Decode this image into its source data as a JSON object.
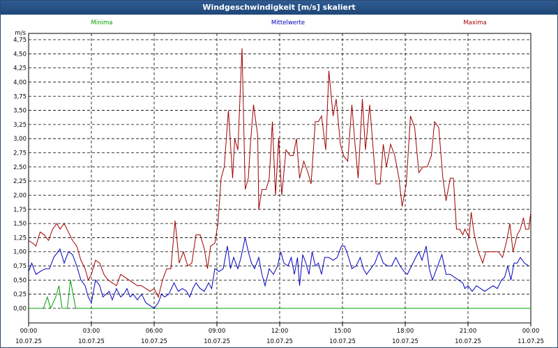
{
  "window": {
    "title": "Windgeschwindigkeit [m/s] skaliert"
  },
  "chart_data": {
    "type": "line",
    "title": "Windgeschwindigkeit [m/s] skaliert",
    "ylabel": "m/s",
    "xlabel": "",
    "ylim": [
      0,
      4.75
    ],
    "xlim": [
      0,
      24
    ],
    "grid": true,
    "legend_placement": "top",
    "y_ticks": [
      "4,75",
      "4,50",
      "4,25",
      "4,00",
      "3,75",
      "3,50",
      "3,25",
      "3,00",
      "2,75",
      "2,50",
      "2,25",
      "2,00",
      "1,75",
      "1,50",
      "1,25",
      "1,00",
      "0,75",
      "0,50",
      "0,25",
      "0,00"
    ],
    "x_ticks": [
      {
        "time": "00:00",
        "date": "10.07.25"
      },
      {
        "time": "03:00",
        "date": "10.07.25"
      },
      {
        "time": "06:00",
        "date": "10.07.25"
      },
      {
        "time": "09:00",
        "date": "10.07.25"
      },
      {
        "time": "12:00",
        "date": "10.07.25"
      },
      {
        "time": "15:00",
        "date": "10.07.25"
      },
      {
        "time": "18:00",
        "date": "10.07.25"
      },
      {
        "time": "21:00",
        "date": "10.07.25"
      },
      {
        "time": "00:00",
        "date": "11.07.25"
      }
    ],
    "series": [
      {
        "name": "Minima",
        "color": "#00a000",
        "points": [
          [
            0,
            0
          ],
          [
            0.7,
            0
          ],
          [
            0.9,
            0.2
          ],
          [
            1.05,
            0
          ],
          [
            1.3,
            0.2
          ],
          [
            1.45,
            0.4
          ],
          [
            1.6,
            0
          ],
          [
            1.85,
            0
          ],
          [
            2.0,
            0.5
          ],
          [
            2.25,
            0
          ],
          [
            24,
            0
          ]
        ]
      },
      {
        "name": "Mittelwerte",
        "color": "#0000c0",
        "points": [
          [
            0,
            0.65
          ],
          [
            0.15,
            0.8
          ],
          [
            0.35,
            0.6
          ],
          [
            0.55,
            0.65
          ],
          [
            0.8,
            0.7
          ],
          [
            1.0,
            0.7
          ],
          [
            1.2,
            0.9
          ],
          [
            1.5,
            1.05
          ],
          [
            1.7,
            0.8
          ],
          [
            1.9,
            1.0
          ],
          [
            2.1,
            0.95
          ],
          [
            2.3,
            0.75
          ],
          [
            2.5,
            0.5
          ],
          [
            2.7,
            0.4
          ],
          [
            2.85,
            0.2
          ],
          [
            3.0,
            0.1
          ],
          [
            3.2,
            0.5
          ],
          [
            3.4,
            0.4
          ],
          [
            3.55,
            0.2
          ],
          [
            3.7,
            0.25
          ],
          [
            3.85,
            0.3
          ],
          [
            4.0,
            0.15
          ],
          [
            4.2,
            0.35
          ],
          [
            4.4,
            0.2
          ],
          [
            4.55,
            0.25
          ],
          [
            4.7,
            0.35
          ],
          [
            4.85,
            0.2
          ],
          [
            5.0,
            0.25
          ],
          [
            5.2,
            0.15
          ],
          [
            5.4,
            0.25
          ],
          [
            5.6,
            0.1
          ],
          [
            5.8,
            0.05
          ],
          [
            6.0,
            0.0
          ],
          [
            6.2,
            0.1
          ],
          [
            6.35,
            0.25
          ],
          [
            6.5,
            0.2
          ],
          [
            6.7,
            0.25
          ],
          [
            6.95,
            0.45
          ],
          [
            7.15,
            0.3
          ],
          [
            7.35,
            0.35
          ],
          [
            7.55,
            0.3
          ],
          [
            7.7,
            0.2
          ],
          [
            7.85,
            0.35
          ],
          [
            8.0,
            0.45
          ],
          [
            8.2,
            0.35
          ],
          [
            8.4,
            0.3
          ],
          [
            8.6,
            0.45
          ],
          [
            8.75,
            0.35
          ],
          [
            8.9,
            0.7
          ],
          [
            9.1,
            0.65
          ],
          [
            9.3,
            0.7
          ],
          [
            9.5,
            1.1
          ],
          [
            9.65,
            0.7
          ],
          [
            9.8,
            0.9
          ],
          [
            10.0,
            0.7
          ],
          [
            10.15,
            0.9
          ],
          [
            10.35,
            1.25
          ],
          [
            10.5,
            1.0
          ],
          [
            10.65,
            0.8
          ],
          [
            10.8,
            0.7
          ],
          [
            11.0,
            0.9
          ],
          [
            11.15,
            0.6
          ],
          [
            11.3,
            0.4
          ],
          [
            11.5,
            0.7
          ],
          [
            11.7,
            0.6
          ],
          [
            11.9,
            0.75
          ],
          [
            12.05,
            1.0
          ],
          [
            12.2,
            0.8
          ],
          [
            12.4,
            0.75
          ],
          [
            12.55,
            0.9
          ],
          [
            12.7,
            0.6
          ],
          [
            12.85,
            0.9
          ],
          [
            12.95,
            0.4
          ],
          [
            13.1,
            0.95
          ],
          [
            13.25,
            0.8
          ],
          [
            13.4,
            0.6
          ],
          [
            13.55,
            1.0
          ],
          [
            13.7,
            0.75
          ],
          [
            13.85,
            0.8
          ],
          [
            14.0,
            0.6
          ],
          [
            14.15,
            0.9
          ],
          [
            14.35,
            0.9
          ],
          [
            14.55,
            0.85
          ],
          [
            14.75,
            0.9
          ],
          [
            14.95,
            1.1
          ],
          [
            15.1,
            1.1
          ],
          [
            15.25,
            0.95
          ],
          [
            15.45,
            0.7
          ],
          [
            15.65,
            0.75
          ],
          [
            15.85,
            0.9
          ],
          [
            16.0,
            0.7
          ],
          [
            16.15,
            0.6
          ],
          [
            16.35,
            0.7
          ],
          [
            16.55,
            0.8
          ],
          [
            16.75,
            1.0
          ],
          [
            16.95,
            0.8
          ],
          [
            17.15,
            0.75
          ],
          [
            17.35,
            0.75
          ],
          [
            17.55,
            0.9
          ],
          [
            17.75,
            0.75
          ],
          [
            17.95,
            0.65
          ],
          [
            18.1,
            0.6
          ],
          [
            18.3,
            0.75
          ],
          [
            18.5,
            0.9
          ],
          [
            18.65,
            1.0
          ],
          [
            18.8,
            0.85
          ],
          [
            19.0,
            1.1
          ],
          [
            19.15,
            0.7
          ],
          [
            19.3,
            0.5
          ],
          [
            19.45,
            0.65
          ],
          [
            19.6,
            0.8
          ],
          [
            19.75,
            0.95
          ],
          [
            19.95,
            0.6
          ],
          [
            20.15,
            0.6
          ],
          [
            20.35,
            0.55
          ],
          [
            20.55,
            0.5
          ],
          [
            20.75,
            0.45
          ],
          [
            20.85,
            0.35
          ],
          [
            21.0,
            0.4
          ],
          [
            21.2,
            0.3
          ],
          [
            21.4,
            0.4
          ],
          [
            21.6,
            0.35
          ],
          [
            21.8,
            0.3
          ],
          [
            22.0,
            0.35
          ],
          [
            22.2,
            0.4
          ],
          [
            22.4,
            0.35
          ],
          [
            22.6,
            0.5
          ],
          [
            22.75,
            0.55
          ],
          [
            22.9,
            0.75
          ],
          [
            23.05,
            0.5
          ],
          [
            23.2,
            0.8
          ],
          [
            23.35,
            0.8
          ],
          [
            23.5,
            0.9
          ],
          [
            23.7,
            0.8
          ],
          [
            23.9,
            0.75
          ]
        ]
      },
      {
        "name": "Maxima",
        "color": "#a00000",
        "points": [
          [
            0,
            1.2
          ],
          [
            0.2,
            1.15
          ],
          [
            0.35,
            1.1
          ],
          [
            0.55,
            1.35
          ],
          [
            0.75,
            1.3
          ],
          [
            0.95,
            1.2
          ],
          [
            1.15,
            1.4
          ],
          [
            1.35,
            1.5
          ],
          [
            1.5,
            1.4
          ],
          [
            1.7,
            1.5
          ],
          [
            1.9,
            1.35
          ],
          [
            2.1,
            1.2
          ],
          [
            2.3,
            1.1
          ],
          [
            2.5,
            0.85
          ],
          [
            2.7,
            0.7
          ],
          [
            2.85,
            0.5
          ],
          [
            3.0,
            0.6
          ],
          [
            3.2,
            0.85
          ],
          [
            3.4,
            0.8
          ],
          [
            3.6,
            0.6
          ],
          [
            3.8,
            0.5
          ],
          [
            4.0,
            0.45
          ],
          [
            4.2,
            0.4
          ],
          [
            4.4,
            0.6
          ],
          [
            4.6,
            0.55
          ],
          [
            4.8,
            0.5
          ],
          [
            5.0,
            0.45
          ],
          [
            5.2,
            0.4
          ],
          [
            5.4,
            0.4
          ],
          [
            5.6,
            0.35
          ],
          [
            5.8,
            0.3
          ],
          [
            6.0,
            0.35
          ],
          [
            6.2,
            0.2
          ],
          [
            6.4,
            0.5
          ],
          [
            6.6,
            0.7
          ],
          [
            6.8,
            0.7
          ],
          [
            7.0,
            1.55
          ],
          [
            7.2,
            0.8
          ],
          [
            7.4,
            1.0
          ],
          [
            7.6,
            0.75
          ],
          [
            7.8,
            0.8
          ],
          [
            8.0,
            1.3
          ],
          [
            8.2,
            1.3
          ],
          [
            8.4,
            1.05
          ],
          [
            8.55,
            0.7
          ],
          [
            8.7,
            1.1
          ],
          [
            8.9,
            1.15
          ],
          [
            9.05,
            1.5
          ],
          [
            9.2,
            2.3
          ],
          [
            9.35,
            2.5
          ],
          [
            9.55,
            3.5
          ],
          [
            9.75,
            2.3
          ],
          [
            9.85,
            3.0
          ],
          [
            10.0,
            2.8
          ],
          [
            10.2,
            4.6
          ],
          [
            10.35,
            2.1
          ],
          [
            10.5,
            2.3
          ],
          [
            10.6,
            2.9
          ],
          [
            10.75,
            3.6
          ],
          [
            10.95,
            3.05
          ],
          [
            11.0,
            1.75
          ],
          [
            11.15,
            2.1
          ],
          [
            11.35,
            2.1
          ],
          [
            11.5,
            2.3
          ],
          [
            11.65,
            3.3
          ],
          [
            11.8,
            2.0
          ],
          [
            11.95,
            3.0
          ],
          [
            12.1,
            2.0
          ],
          [
            12.3,
            2.8
          ],
          [
            12.5,
            2.7
          ],
          [
            12.65,
            2.7
          ],
          [
            12.8,
            3.0
          ],
          [
            12.95,
            2.3
          ],
          [
            13.15,
            2.6
          ],
          [
            13.35,
            2.4
          ],
          [
            13.5,
            2.2
          ],
          [
            13.7,
            3.3
          ],
          [
            13.85,
            3.3
          ],
          [
            14.0,
            3.4
          ],
          [
            14.2,
            2.8
          ],
          [
            14.35,
            4.2
          ],
          [
            14.55,
            3.4
          ],
          [
            14.7,
            3.7
          ],
          [
            14.9,
            2.9
          ],
          [
            15.05,
            2.7
          ],
          [
            15.25,
            2.6
          ],
          [
            15.45,
            3.6
          ],
          [
            15.6,
            2.9
          ],
          [
            15.75,
            2.3
          ],
          [
            15.95,
            3.7
          ],
          [
            16.1,
            2.8
          ],
          [
            16.3,
            3.6
          ],
          [
            16.45,
            2.9
          ],
          [
            16.6,
            2.2
          ],
          [
            16.8,
            2.2
          ],
          [
            16.95,
            2.9
          ],
          [
            17.1,
            2.5
          ],
          [
            17.3,
            2.9
          ],
          [
            17.5,
            2.7
          ],
          [
            17.7,
            2.3
          ],
          [
            17.85,
            1.8
          ],
          [
            18.05,
            2.2
          ],
          [
            18.25,
            3.4
          ],
          [
            18.45,
            3.2
          ],
          [
            18.65,
            2.4
          ],
          [
            18.85,
            2.5
          ],
          [
            19.05,
            2.5
          ],
          [
            19.25,
            2.7
          ],
          [
            19.4,
            3.3
          ],
          [
            19.6,
            3.2
          ],
          [
            19.8,
            2.3
          ],
          [
            19.95,
            1.9
          ],
          [
            20.15,
            2.3
          ],
          [
            20.3,
            2.3
          ],
          [
            20.45,
            1.4
          ],
          [
            20.6,
            1.4
          ],
          [
            20.75,
            1.3
          ],
          [
            20.85,
            1.4
          ],
          [
            21.05,
            1.25
          ],
          [
            21.15,
            1.7
          ],
          [
            21.3,
            1.3
          ],
          [
            21.5,
            1.0
          ],
          [
            21.7,
            0.8
          ],
          [
            21.85,
            1.0
          ],
          [
            22.05,
            1.0
          ],
          [
            22.25,
            1.0
          ],
          [
            22.45,
            1.0
          ],
          [
            22.65,
            0.9
          ],
          [
            22.85,
            1.2
          ],
          [
            23.0,
            1.5
          ],
          [
            23.15,
            1.0
          ],
          [
            23.35,
            1.3
          ],
          [
            23.5,
            1.4
          ],
          [
            23.65,
            1.6
          ],
          [
            23.75,
            1.4
          ],
          [
            23.9,
            1.4
          ],
          [
            24.0,
            1.7
          ]
        ]
      }
    ]
  }
}
